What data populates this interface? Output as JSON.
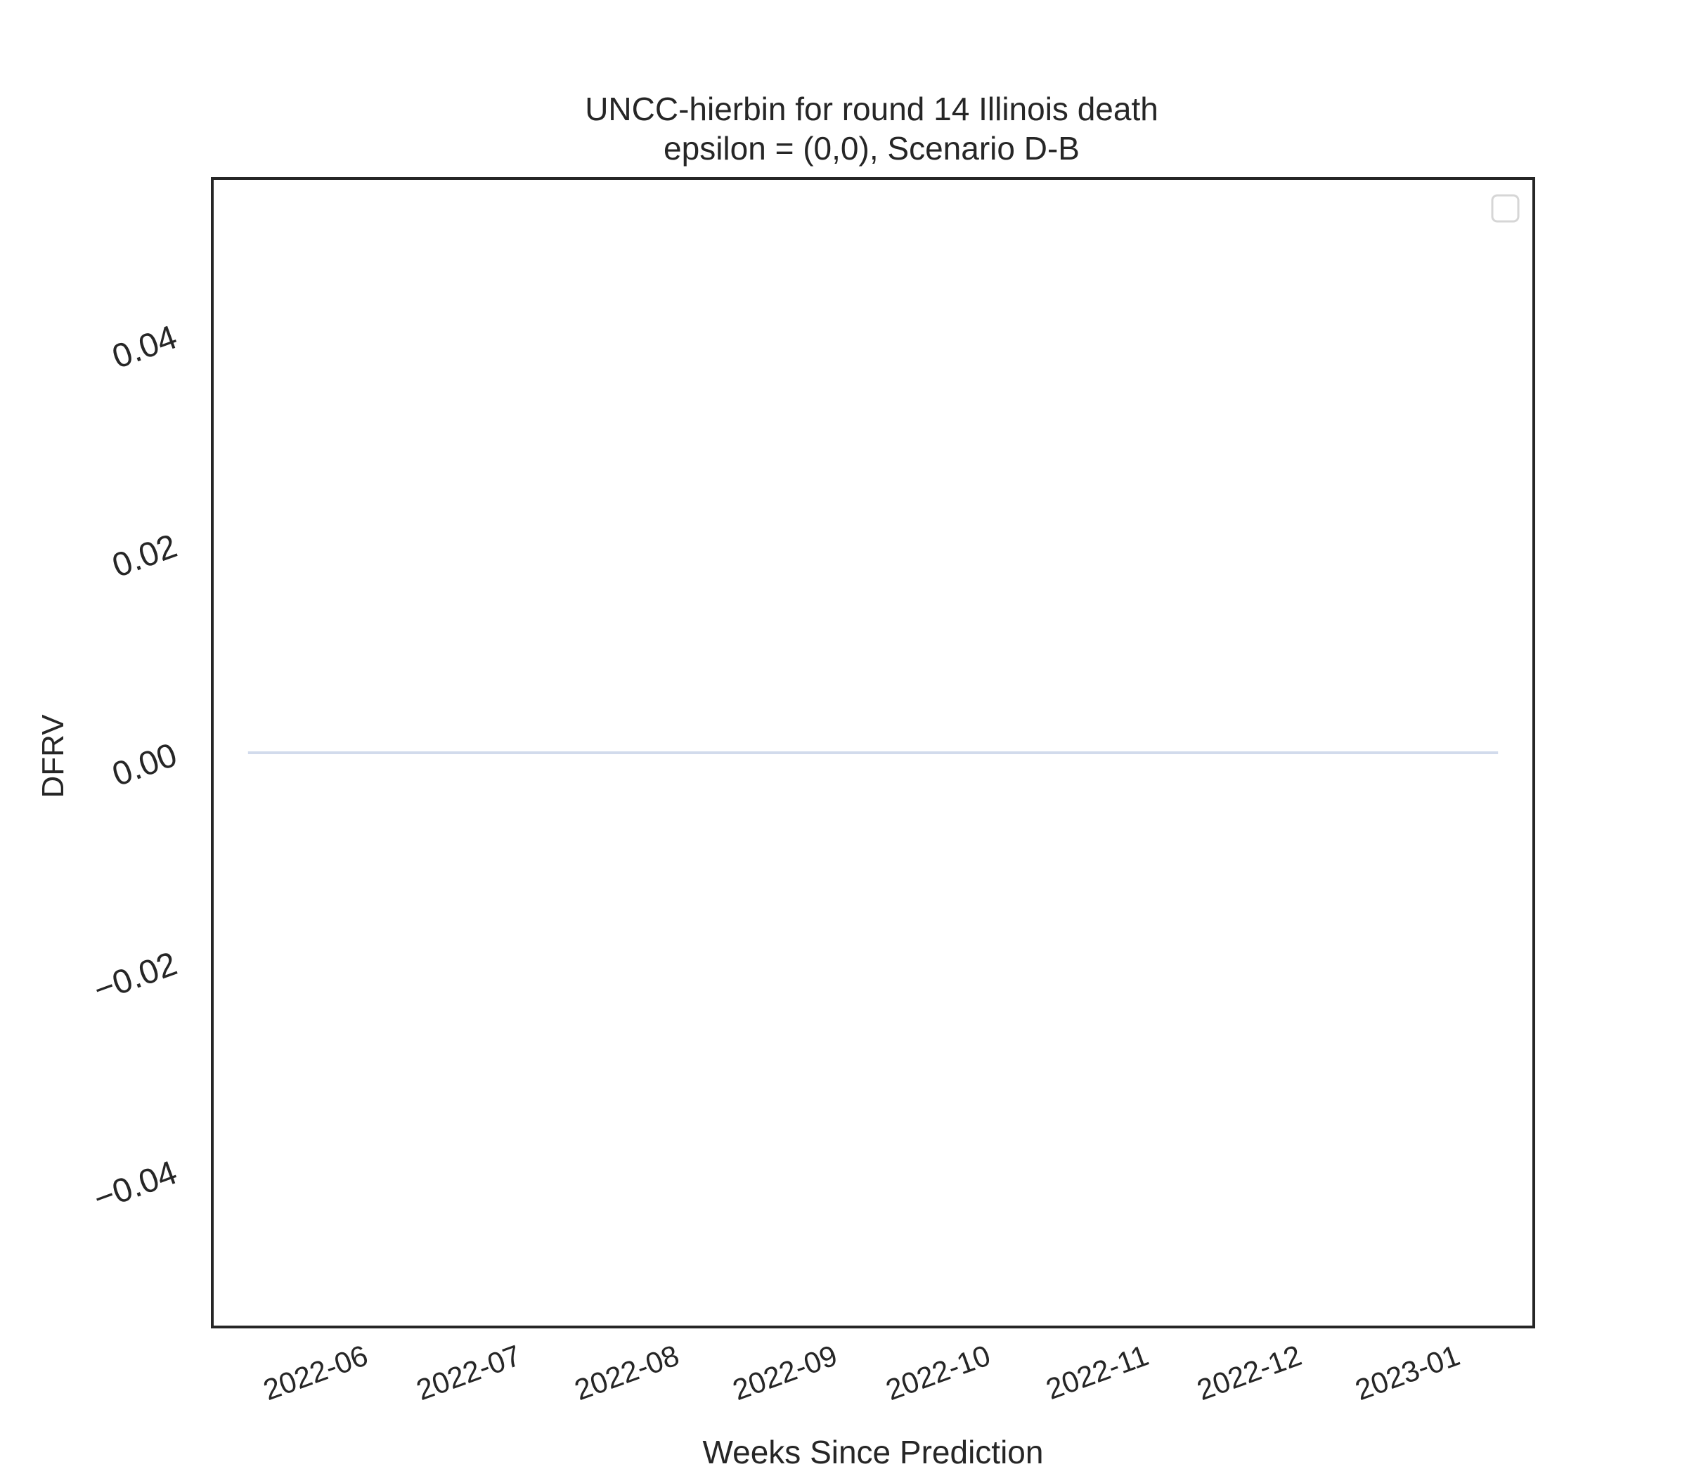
{
  "chart_data": {
    "type": "line",
    "title": "UNCC-hierbin for round 14 Illinois death",
    "subtitle": "epsilon = (0,0), Scenario D-B",
    "xlabel": "Weeks Since Prediction",
    "ylabel": "DFRV",
    "x_ticks": [
      "2022-06",
      "2022-07",
      "2022-08",
      "2022-09",
      "2022-10",
      "2022-11",
      "2022-12",
      "2023-01"
    ],
    "y_ticks": [
      0.04,
      0.02,
      0.0,
      -0.02,
      -0.04
    ],
    "y_tick_labels": [
      "0.04",
      "0.02",
      "0.00",
      "−0.02",
      "−0.04"
    ],
    "ylim": [
      -0.055,
      0.055
    ],
    "xlim": [
      "2022-05-08",
      "2023-01-22"
    ],
    "series": [
      {
        "x": [
          "2022-05-15",
          "2022-05-22",
          "2022-05-29",
          "2022-06-05",
          "2022-06-12",
          "2022-06-19",
          "2022-06-26",
          "2022-07-03",
          "2022-07-10",
          "2022-07-17",
          "2022-07-24",
          "2022-07-31",
          "2022-08-07",
          "2022-08-14",
          "2022-08-21",
          "2022-08-28",
          "2022-09-04",
          "2022-09-11",
          "2022-09-18",
          "2022-09-25",
          "2022-10-02",
          "2022-10-09",
          "2022-10-16",
          "2022-10-23",
          "2022-10-30",
          "2022-11-06",
          "2022-11-13",
          "2022-11-20",
          "2022-11-27",
          "2022-12-04",
          "2022-12-11",
          "2022-12-18",
          "2022-12-25",
          "2023-01-01",
          "2023-01-08",
          "2023-01-15"
        ],
        "values": [
          0,
          0,
          0,
          0,
          0,
          0,
          0,
          0,
          0,
          0,
          0,
          0,
          0,
          0,
          0,
          0,
          0,
          0,
          0,
          0,
          0,
          0,
          0,
          0,
          0,
          0,
          0,
          0,
          0,
          0,
          0,
          0,
          0,
          0,
          0,
          0
        ],
        "color": "#d2dbec"
      }
    ],
    "legend": {
      "position": "upper right",
      "entries": []
    },
    "grid": false
  }
}
